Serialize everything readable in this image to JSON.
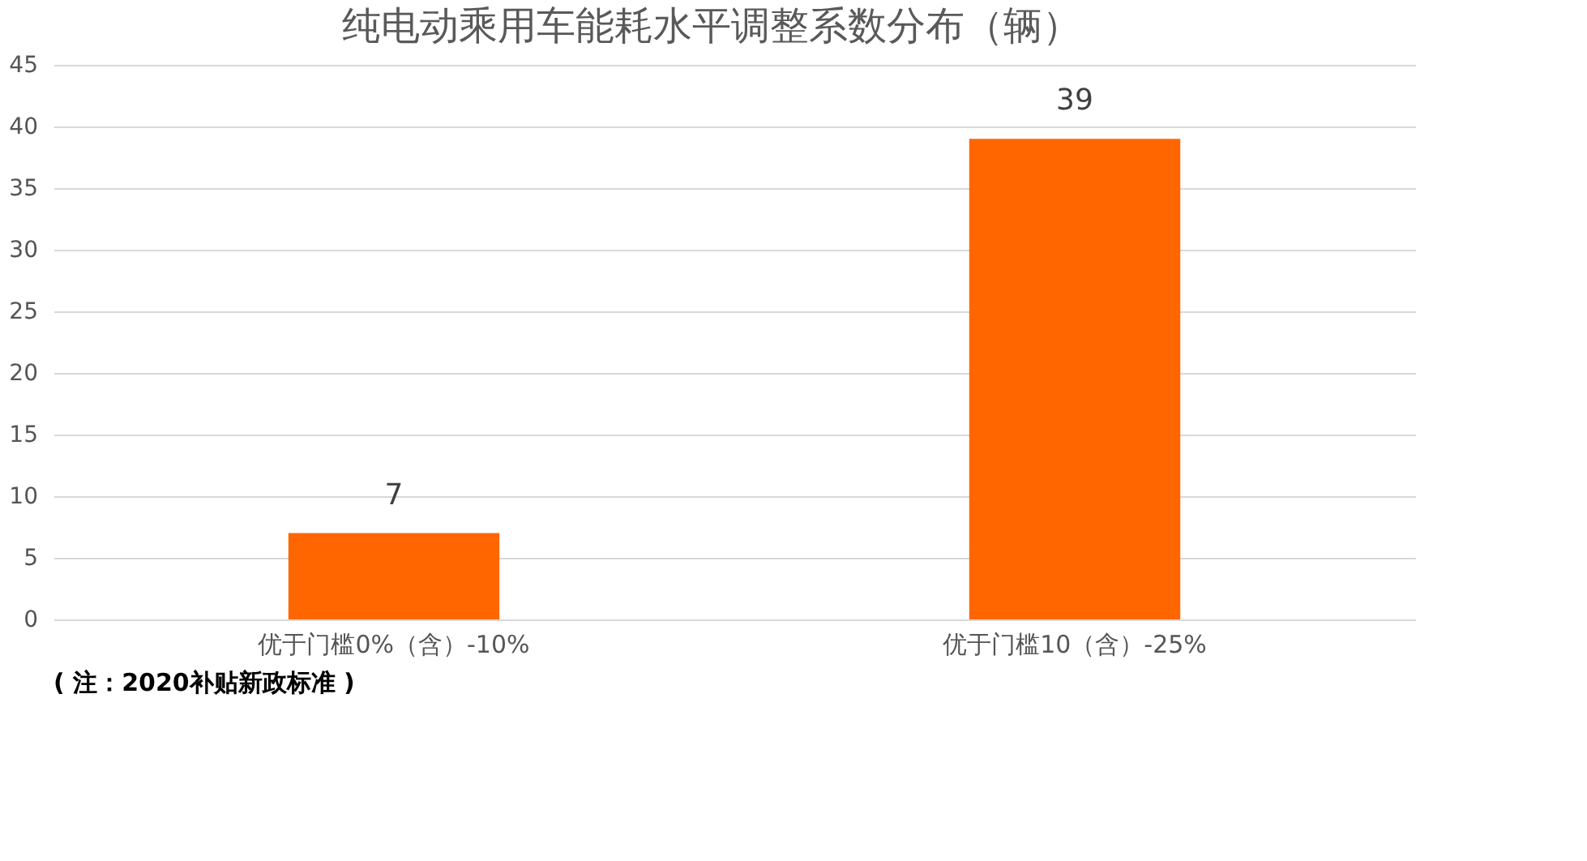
{
  "chart_data": {
    "type": "bar",
    "title": "纯电动乘用车能耗水平调整系数分布（辆）",
    "categories": [
      "优于门槛0%（含）-10%",
      "优于门槛10（含）-25%"
    ],
    "values": [
      7,
      39
    ],
    "color": "#ff6600",
    "ylim": [
      0,
      45
    ],
    "yticks": [
      0,
      5,
      10,
      15,
      20,
      25,
      30,
      35,
      40,
      45
    ],
    "grid": "y",
    "data_labels": true,
    "annotations": [
      "( 注：2020补贴新政标准 )"
    ]
  }
}
